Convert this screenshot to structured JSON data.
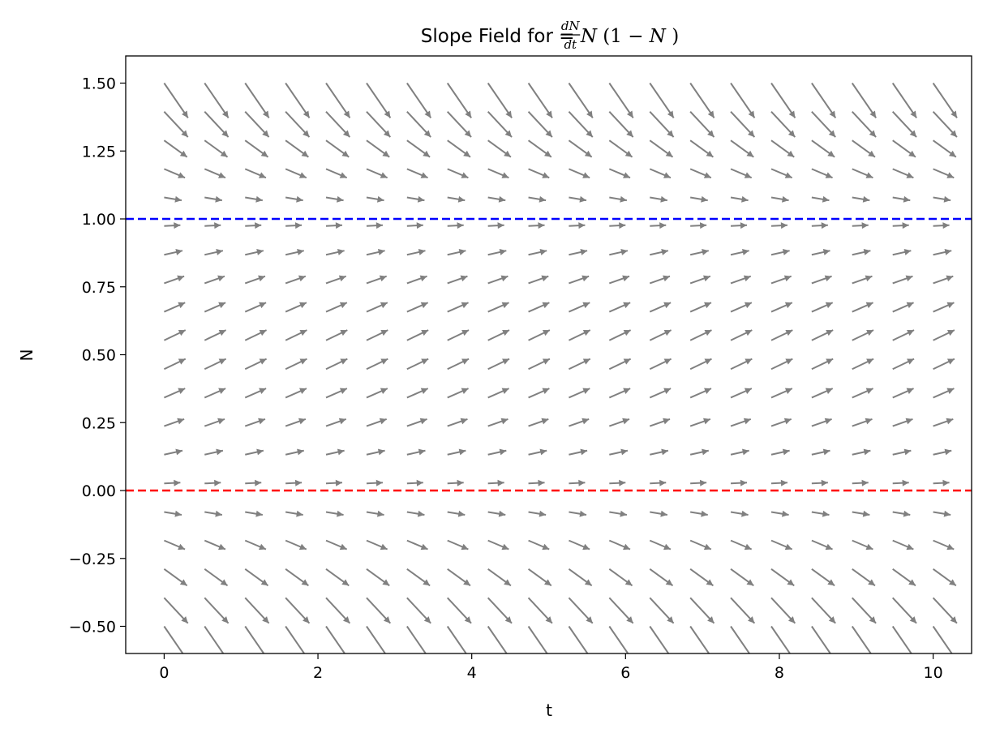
{
  "chart_data": {
    "type": "quiver",
    "title": {
      "prefix": "Slope Field for ",
      "frac_num": "dN",
      "frac_den": "dt",
      "equals": " = ",
      "rhs_var": "N",
      "rhs_open": "(1 − ",
      "rhs_var2": "N",
      "rhs_close": ")"
    },
    "xlabel": "t",
    "ylabel": "N",
    "xlim": [
      -0.5,
      10.5
    ],
    "ylim": [
      -0.6,
      1.6
    ],
    "xticks": [
      0,
      2,
      4,
      6,
      8,
      10
    ],
    "xtick_labels": [
      "0",
      "2",
      "4",
      "6",
      "8",
      "10"
    ],
    "yticks": [
      -0.5,
      -0.25,
      0.0,
      0.25,
      0.5,
      0.75,
      1.0,
      1.25,
      1.5
    ],
    "ytick_labels": [
      "−0.50",
      "−0.25",
      "0.00",
      "0.25",
      "0.50",
      "0.75",
      "1.00",
      "1.25",
      "1.50"
    ],
    "grid": false,
    "field": {
      "equation": "N(1-N)",
      "t_values": [
        0,
        0.526,
        1.053,
        1.579,
        2.105,
        2.632,
        3.158,
        3.684,
        4.211,
        4.737,
        5.263,
        5.789,
        6.316,
        6.842,
        7.368,
        7.895,
        8.421,
        8.947,
        9.474,
        10
      ],
      "n_values": [
        -0.5,
        -0.395,
        -0.289,
        -0.184,
        -0.079,
        0.026,
        0.132,
        0.237,
        0.342,
        0.447,
        0.553,
        0.658,
        0.763,
        0.868,
        0.974,
        1.079,
        1.184,
        1.289,
        1.395,
        1.5
      ],
      "arrow_color": "#808080"
    },
    "equilibria": [
      {
        "N": 1.0,
        "color": "#0000ff",
        "style": "dashed"
      },
      {
        "N": 0.0,
        "color": "#ff0000",
        "style": "dashed"
      }
    ]
  }
}
